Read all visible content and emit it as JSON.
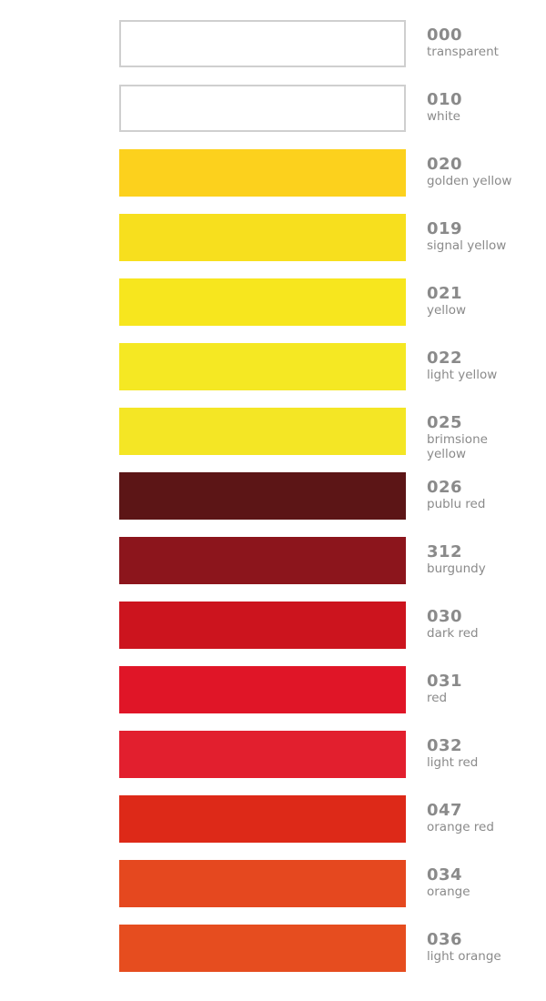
{
  "swatches": [
    {
      "code": "000",
      "name": "transparent",
      "color": "transparent"
    },
    {
      "code": "010",
      "name": "white",
      "color": "#ffffff"
    },
    {
      "code": "020",
      "name": "golden yellow",
      "color": "#fcd11d"
    },
    {
      "code": "019",
      "name": "signal yellow",
      "color": "#f7df1e"
    },
    {
      "code": "021",
      "name": "yellow",
      "color": "#f7e61e"
    },
    {
      "code": "022",
      "name": "light yellow",
      "color": "#f5e823"
    },
    {
      "code": "025",
      "name": "brimsione yellow",
      "color": "#f4e625"
    },
    {
      "code": "026",
      "name": "publu red",
      "color": "#5c1516"
    },
    {
      "code": "312",
      "name": "burgundy",
      "color": "#8c151c"
    },
    {
      "code": "030",
      "name": "dark red",
      "color": "#cc141e"
    },
    {
      "code": "031",
      "name": "red",
      "color": "#e01527"
    },
    {
      "code": "032",
      "name": "light red",
      "color": "#e21f2e"
    },
    {
      "code": "047",
      "name": "orange red",
      "color": "#dd2918"
    },
    {
      "code": "034",
      "name": "orange",
      "color": "#e5481f"
    },
    {
      "code": "036",
      "name": "light orange",
      "color": "#e64d1f"
    }
  ]
}
